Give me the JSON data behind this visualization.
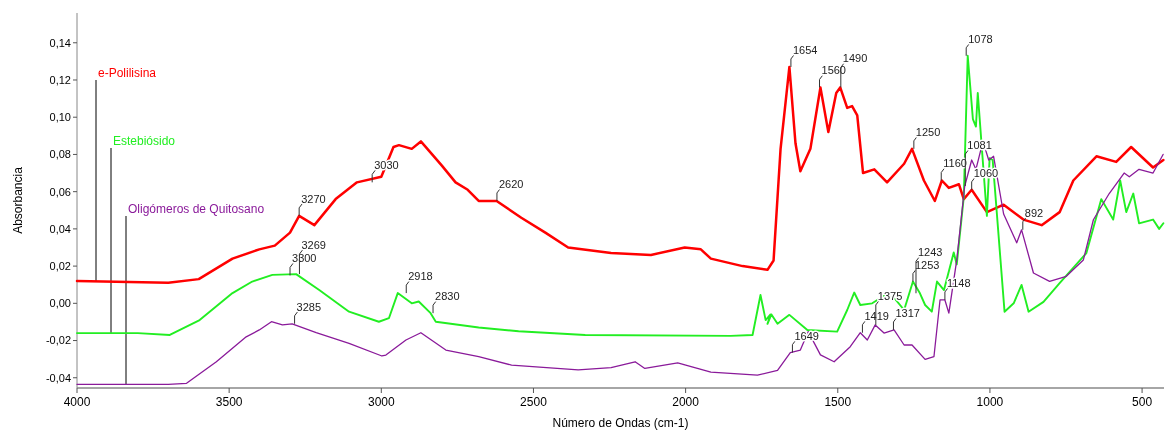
{
  "chart_data": {
    "type": "line",
    "xlabel": "Número de Ondas (cm-1)",
    "ylabel": "Absorbancia",
    "xlim": [
      4000,
      428
    ],
    "ylim": [
      -0.0455,
      0.156
    ],
    "xticks": [
      4000,
      3500,
      3000,
      2500,
      2000,
      1500,
      1000,
      500
    ],
    "yticks": [
      {
        "value": -0.04,
        "label": "-0,04"
      },
      {
        "value": -0.02,
        "label": "-0,02"
      },
      {
        "value": 0,
        "label": "0,00"
      },
      {
        "value": 0.02,
        "label": "0,02"
      },
      {
        "value": 0.04,
        "label": "0,04"
      },
      {
        "value": 0.06,
        "label": "0,06"
      },
      {
        "value": 0.08,
        "label": "0,08"
      },
      {
        "value": 0.1,
        "label": "0,10"
      },
      {
        "value": 0.12,
        "label": "0,12"
      },
      {
        "value": 0.14,
        "label": "0,14"
      }
    ],
    "grid": false,
    "legend": false,
    "marker": "none",
    "line_style": "solid",
    "series": [
      {
        "name": "e-Polilisina",
        "color": "#ff0000",
        "x": [
          4000,
          3700,
          3600,
          3489,
          3401,
          3350,
          3300,
          3270,
          3220,
          3150,
          3080,
          3000,
          2960,
          2942,
          2900,
          2870,
          2801,
          2756,
          2716,
          2680,
          2621,
          2540,
          2461,
          2386,
          2245,
          2114,
          2003,
          1950,
          1917,
          1813,
          1731,
          1711,
          1688,
          1659,
          1639,
          1623,
          1590,
          1557,
          1531,
          1505,
          1492,
          1469,
          1453,
          1436,
          1417,
          1380,
          1338,
          1282,
          1256,
          1217,
          1181,
          1158,
          1135,
          1102,
          1086,
          1060,
          1010,
          955,
          890,
          830,
          771,
          726,
          650,
          585,
          536,
          464,
          430
        ],
        "values": [
          0.012,
          0.011,
          0.013,
          0.024,
          0.029,
          0.031,
          0.038,
          0.047,
          0.042,
          0.056,
          0.065,
          0.068,
          0.084,
          0.085,
          0.083,
          0.087,
          0.074,
          0.065,
          0.061,
          0.055,
          0.055,
          0.046,
          0.038,
          0.03,
          0.027,
          0.026,
          0.03,
          0.029,
          0.024,
          0.02,
          0.018,
          0.023,
          0.083,
          0.127,
          0.086,
          0.071,
          0.083,
          0.116,
          0.092,
          0.113,
          0.116,
          0.105,
          0.106,
          0.101,
          0.07,
          0.072,
          0.065,
          0.075,
          0.083,
          0.066,
          0.055,
          0.066,
          0.062,
          0.064,
          0.056,
          0.061,
          0.049,
          0.053,
          0.045,
          0.042,
          0.049,
          0.066,
          0.079,
          0.076,
          0.084,
          0.073,
          0.077
        ]
      },
      {
        "name": "Estebiósido",
        "color": "#22ee22",
        "x": [
          4000,
          3800,
          3695,
          3597,
          3489,
          3424,
          3358,
          3280,
          3204,
          3106,
          3008,
          2975,
          2946,
          2900,
          2877,
          2838,
          2821,
          2680,
          2549,
          2330,
          1852,
          1780,
          1754,
          1737,
          1721,
          1731,
          1718,
          1698,
          1659,
          1600,
          1502,
          1469,
          1446,
          1426,
          1387,
          1344,
          1312,
          1282,
          1253,
          1230,
          1213,
          1191,
          1174,
          1151,
          1119,
          1109,
          1086,
          1073,
          1056,
          1046,
          1040,
          1010,
          1001,
          991,
          952,
          922,
          896,
          873,
          824,
          771,
          683,
          634,
          595,
          572,
          552,
          529,
          510,
          464,
          444,
          430
        ],
        "values": [
          -0.016,
          -0.016,
          -0.017,
          -0.009,
          0.0055,
          0.0117,
          0.0153,
          0.0157,
          0.0072,
          -0.0045,
          -0.0099,
          -0.008,
          0.0055,
          0,
          0.001,
          -0.0053,
          -0.0099,
          -0.013,
          -0.015,
          -0.017,
          -0.0175,
          -0.017,
          0.0045,
          -0.009,
          -0.006,
          -0.011,
          -0.006,
          -0.011,
          -0.0062,
          -0.0143,
          -0.0152,
          -0.0036,
          0.0058,
          -0.0009,
          0,
          0.0045,
          0.0024,
          -0.0036,
          0.0117,
          0.0054,
          -0.0009,
          -0.0045,
          0.0117,
          0.0071,
          0.0273,
          0.0209,
          0.057,
          0.133,
          0.099,
          0.095,
          0.113,
          0.047,
          0.078,
          0.077,
          -0.0045,
          0,
          0.0099,
          -0.0045,
          0.0008,
          0.0108,
          0.027,
          0.056,
          0.045,
          0.066,
          0.049,
          0.059,
          0.043,
          0.045,
          0.04,
          0.043
        ]
      },
      {
        "name": "Oligómeros de Quitosano",
        "color": "#8a1a9a",
        "x": [
          4000,
          3700,
          3640,
          3542,
          3444,
          3401,
          3361,
          3325,
          3293,
          3214,
          3106,
          2998,
          2985,
          2919,
          2870,
          2788,
          2680,
          2572,
          2353,
          2245,
          2166,
          2134,
          2026,
          1917,
          1764,
          1698,
          1656,
          1623,
          1597,
          1557,
          1512,
          1459,
          1426,
          1403,
          1377,
          1348,
          1315,
          1282,
          1256,
          1213,
          1184,
          1164,
          1148,
          1135,
          1109,
          1083,
          1060,
          1046,
          1023,
          1004,
          988,
          955,
          912,
          896,
          857,
          804,
          749,
          693,
          660,
          608,
          559,
          542,
          510,
          464,
          431
        ],
        "values": [
          -0.0435,
          -0.0435,
          -0.043,
          -0.0314,
          -0.018,
          -0.0143,
          -0.0099,
          -0.0116,
          -0.011,
          -0.0158,
          -0.0215,
          -0.0283,
          -0.0278,
          -0.0197,
          -0.0158,
          -0.0251,
          -0.0287,
          -0.0332,
          -0.0358,
          -0.0345,
          -0.0314,
          -0.035,
          -0.032,
          -0.037,
          -0.0386,
          -0.036,
          -0.0265,
          -0.0251,
          -0.0152,
          -0.0277,
          -0.0314,
          -0.0233,
          -0.0158,
          -0.0197,
          -0.0116,
          -0.016,
          -0.0143,
          -0.0224,
          -0.0224,
          -0.0301,
          -0.0287,
          0.0018,
          0.0018,
          -0.0053,
          0.0233,
          0.0628,
          0.077,
          0.072,
          0.087,
          0.077,
          0.079,
          0.048,
          0.0325,
          0.0395,
          0.0163,
          0.0118,
          0.0145,
          0.0233,
          0.0449,
          0.059,
          0.07,
          0.068,
          0.072,
          0.07,
          0.08
        ]
      }
    ],
    "annotations": [
      {
        "text": "3270",
        "x": 3270,
        "y": 0.047
      },
      {
        "text": "3030",
        "x": 3030,
        "y": 0.065
      },
      {
        "text": "2620",
        "x": 2620,
        "y": 0.055
      },
      {
        "text": "1654",
        "x": 1654,
        "y": 0.127
      },
      {
        "text": "1560",
        "x": 1560,
        "y": 0.116
      },
      {
        "text": "1490",
        "x": 1490,
        "y": 0.116
      },
      {
        "text": "1250",
        "x": 1250,
        "y": 0.083
      },
      {
        "text": "1160",
        "x": 1160,
        "y": 0.066
      },
      {
        "text": "1078",
        "x": 1078,
        "y": 0.133
      },
      {
        "text": "1081",
        "x": 1081,
        "y": 0.063
      },
      {
        "text": "1060",
        "x": 1060,
        "y": 0.061
      },
      {
        "text": "892",
        "x": 892,
        "y": 0.0395
      },
      {
        "text": "3300",
        "x": 3300,
        "y": 0.015
      },
      {
        "text": "3269",
        "x": 3269,
        "y": 0.0157
      },
      {
        "text": "2918",
        "x": 2918,
        "y": 0.0055
      },
      {
        "text": "2830",
        "x": 2830,
        "y": -0.0053
      },
      {
        "text": "1253",
        "x": 1253,
        "y": 0.0117
      },
      {
        "text": "1243",
        "x": 1243,
        "y": 0.0054
      },
      {
        "text": "1148",
        "x": 1148,
        "y": 0.0018
      },
      {
        "text": "3285",
        "x": 3285,
        "y": -0.011
      },
      {
        "text": "1649",
        "x": 1649,
        "y": -0.0265
      },
      {
        "text": "1419",
        "x": 1419,
        "y": -0.0158
      },
      {
        "text": "1375",
        "x": 1375,
        "y": -0.0116
      },
      {
        "text": "1317",
        "x": 1317,
        "y": -0.0143
      }
    ]
  }
}
